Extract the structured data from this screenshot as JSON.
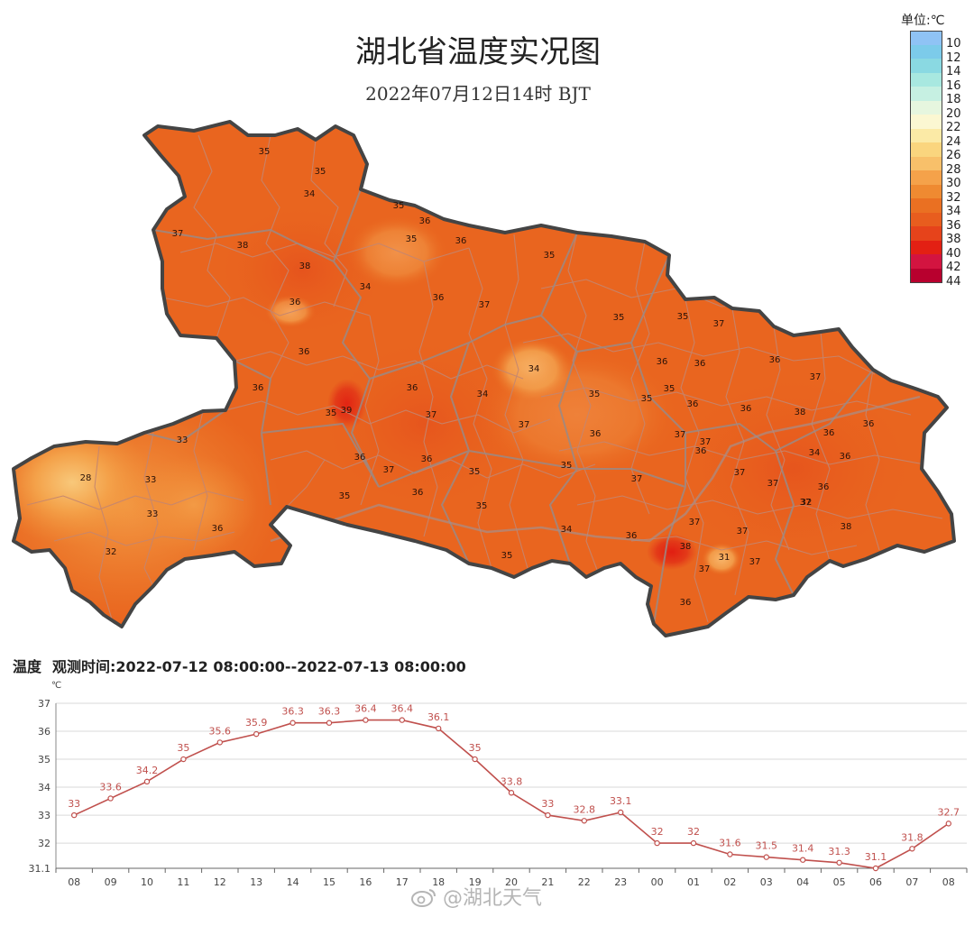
{
  "map": {
    "title": "湖北省温度实况图",
    "subtitle": "2022年07月12日14时    BJT",
    "legend": {
      "unit": "单位:℃",
      "items": [
        {
          "label": "10",
          "color": "#8fc3f5"
        },
        {
          "label": "12",
          "color": "#7ccbea"
        },
        {
          "label": "14",
          "color": "#8ad9e2"
        },
        {
          "label": "16",
          "color": "#a8e8e0"
        },
        {
          "label": "18",
          "color": "#c6f0e2"
        },
        {
          "label": "20",
          "color": "#e6f6df"
        },
        {
          "label": "22",
          "color": "#fbf7d2"
        },
        {
          "label": "24",
          "color": "#fbeaa6"
        },
        {
          "label": "26",
          "color": "#fad57e"
        },
        {
          "label": "28",
          "color": "#f8c06a"
        },
        {
          "label": "30",
          "color": "#f5a24a"
        },
        {
          "label": "32",
          "color": "#ef8a31"
        },
        {
          "label": "34",
          "color": "#ea7022"
        },
        {
          "label": "36",
          "color": "#e85d1e"
        },
        {
          "label": "38",
          "color": "#e6431b"
        },
        {
          "label": "40",
          "color": "#e32013"
        },
        {
          "label": "42",
          "color": "#d31440"
        },
        {
          "label": "44",
          "color": "#b8002e"
        }
      ]
    },
    "station_values": [
      "35",
      "35",
      "34",
      "35",
      "36",
      "38",
      "36",
      "35",
      "37",
      "38",
      "34",
      "36",
      "36",
      "37",
      "35",
      "35",
      "35",
      "37",
      "36",
      "34",
      "36",
      "36",
      "37",
      "39",
      "35",
      "34",
      "35",
      "35",
      "35",
      "36",
      "36",
      "36",
      "36",
      "36",
      "37",
      "38",
      "37",
      "37",
      "36",
      "36",
      "37",
      "36",
      "37",
      "36",
      "35",
      "35",
      "28",
      "33",
      "33",
      "33",
      "36",
      "37",
      "37",
      "37",
      "32",
      "36",
      "36",
      "32",
      "34",
      "36",
      "35",
      "37",
      "37",
      "38",
      "31",
      "37",
      "37",
      "36",
      "36",
      "34",
      "35",
      "36",
      "35",
      "36",
      "37",
      "38"
    ],
    "colors": {
      "province_fill": "#e9651f",
      "outline": "#444444",
      "county_line": "#c48670"
    }
  },
  "chart_header": {
    "variable": "温度",
    "period": "观测时间:2022-07-12 08:00:00--2022-07-13 08:00:00"
  },
  "chart_data": {
    "type": "line",
    "title": "",
    "xlabel": "",
    "ylabel": "℃",
    "categories": [
      "08",
      "09",
      "10",
      "11",
      "12",
      "13",
      "14",
      "15",
      "16",
      "17",
      "18",
      "19",
      "20",
      "21",
      "22",
      "23",
      "00",
      "01",
      "02",
      "03",
      "04",
      "05",
      "06",
      "07",
      "08"
    ],
    "series": [
      {
        "values": [
          33,
          33.6,
          34.2,
          35,
          35.6,
          35.9,
          36.3,
          36.3,
          36.4,
          36.4,
          36.1,
          35,
          33.8,
          33,
          32.8,
          33.1,
          32,
          32,
          31.6,
          31.5,
          31.4,
          31.3,
          31.1,
          31.8,
          32.7
        ],
        "color": "#c0504d"
      }
    ],
    "yticks": [
      "31.1",
      "32",
      "33",
      "34",
      "35",
      "36",
      "37"
    ],
    "ylim": [
      31.1,
      37
    ],
    "grid": true
  },
  "watermark": "@湖北天气"
}
